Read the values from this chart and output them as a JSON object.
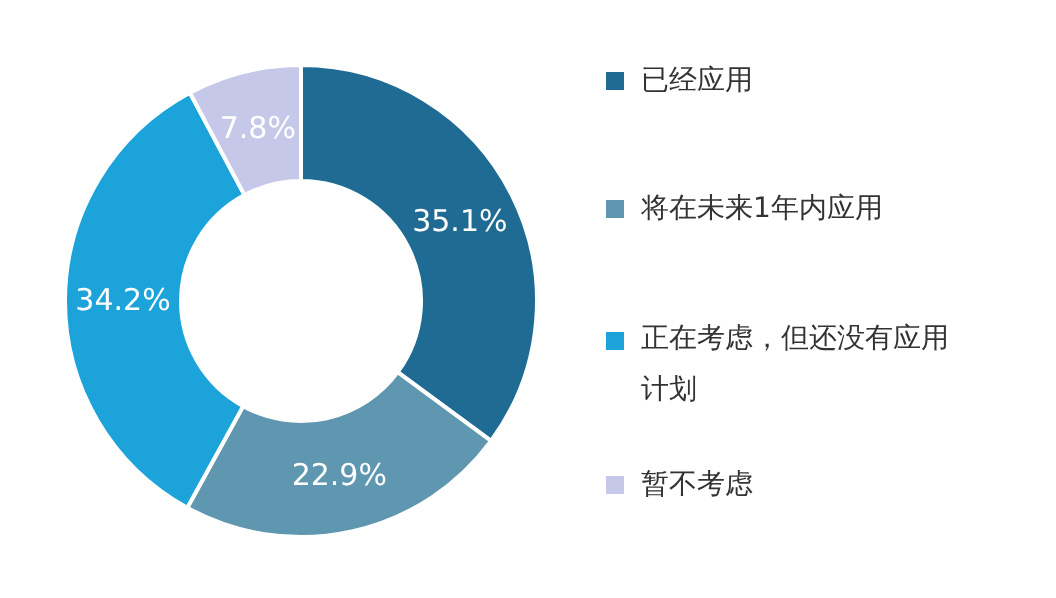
{
  "chart_data": {
    "type": "donut",
    "categories": [
      "已经应用",
      "将在未来1年内应用",
      "正在考虑，但还没有应用计划",
      "暂不考虑"
    ],
    "values": [
      35.1,
      22.9,
      34.2,
      7.8
    ],
    "colors": [
      "#1f6b94",
      "#5f96b0",
      "#1ca4da",
      "#c6c8e9"
    ],
    "value_labels": [
      "35.1%",
      "22.9%",
      "34.2%",
      "7.8%"
    ],
    "legend": "right"
  }
}
